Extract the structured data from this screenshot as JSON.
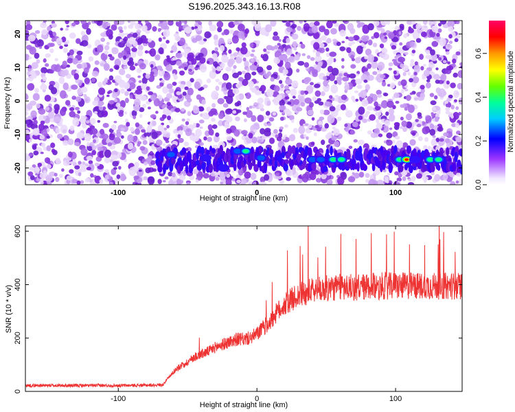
{
  "title": "S196.2025.343.16.13.R08",
  "chart_data": [
    {
      "type": "heatmap",
      "title": "S196.2025.343.16.13.R08",
      "xlabel": "Height of straight line (km)",
      "ylabel": "Frequency (Hz)",
      "xlim": [
        -167,
        148
      ],
      "ylim": [
        -25,
        24
      ],
      "xticks": [
        -100,
        0,
        100
      ],
      "yticks": [
        -20,
        -10,
        0,
        10,
        20
      ],
      "colorbar": {
        "label": "Normalized spectral amplitude",
        "range": [
          0.0,
          0.75
        ],
        "ticks": [
          0.0,
          0.2,
          0.4,
          0.6
        ]
      },
      "band": {
        "frequency": -17.5,
        "x_start": -72,
        "x_end": 148
      },
      "hotspots": [
        {
          "x": -62,
          "y": -16,
          "amplitude": 0.25
        },
        {
          "x": -37,
          "y": -17,
          "amplitude": 0.2
        },
        {
          "x": -24,
          "y": -20,
          "amplitude": 0.2
        },
        {
          "x": -14,
          "y": -15,
          "amplitude": 0.3
        },
        {
          "x": -8,
          "y": -15,
          "amplitude": 0.45
        },
        {
          "x": 3,
          "y": -17,
          "amplitude": 0.25
        },
        {
          "x": 40,
          "y": -17.5,
          "amplitude": 0.25
        },
        {
          "x": 46,
          "y": -17.5,
          "amplitude": 0.25
        },
        {
          "x": 55,
          "y": -17.5,
          "amplitude": 0.4
        },
        {
          "x": 61,
          "y": -17.5,
          "amplitude": 0.4
        },
        {
          "x": 103,
          "y": -17.5,
          "amplitude": 0.45
        },
        {
          "x": 108,
          "y": -17.5,
          "amplitude": 0.72
        },
        {
          "x": 114,
          "y": -17.5,
          "amplitude": 0.2
        },
        {
          "x": 125,
          "y": -17.5,
          "amplitude": 0.4
        },
        {
          "x": 131,
          "y": -17.5,
          "amplitude": 0.4
        }
      ]
    },
    {
      "type": "line",
      "xlabel": "Height of straight line (km)",
      "ylabel": "SNR (10 * v/v)",
      "xlim": [
        -167,
        148
      ],
      "ylim": [
        0,
        620
      ],
      "xticks": [
        -100,
        0,
        100
      ],
      "yticks": [
        0,
        200,
        400,
        600
      ],
      "color": "#ee3333",
      "x": [
        -167,
        -130,
        -100,
        -80,
        -68,
        -60,
        -55,
        -50,
        -45,
        -40,
        -35,
        -30,
        -25,
        -20,
        -15,
        -10,
        -5,
        0,
        5,
        10,
        15,
        20,
        25,
        30,
        35,
        40,
        50,
        60,
        70,
        80,
        90,
        100,
        110,
        120,
        130,
        140,
        148
      ],
      "y": [
        22,
        22,
        22,
        23,
        25,
        75,
        95,
        110,
        130,
        140,
        150,
        165,
        175,
        185,
        195,
        195,
        200,
        215,
        240,
        265,
        300,
        325,
        345,
        360,
        370,
        378,
        385,
        390,
        390,
        392,
        395,
        395,
        395,
        395,
        395,
        395,
        395
      ]
    }
  ]
}
